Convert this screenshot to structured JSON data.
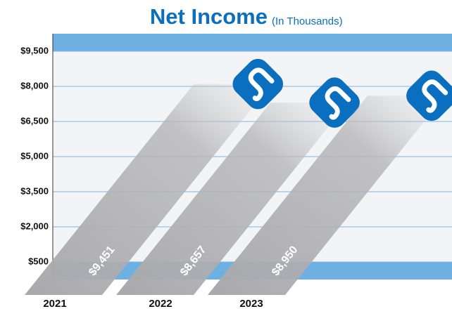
{
  "chart_data": {
    "type": "bar",
    "title": "Net Income",
    "subtitle": "(In Thousands)",
    "categories": [
      "2021",
      "2022",
      "2023"
    ],
    "values": [
      9451,
      8657,
      8950
    ],
    "value_labels": [
      "$9,451",
      "$8,657",
      "$8,950"
    ],
    "color": "#0b6fbf",
    "ylim": [
      -250,
      10250
    ],
    "yticks": [
      {
        "value": 500,
        "label": "$500"
      },
      {
        "value": 2000,
        "label": "$2,000"
      },
      {
        "value": 3500,
        "label": "$3,500"
      },
      {
        "value": 5000,
        "label": "$5,000"
      },
      {
        "value": 6500,
        "label": "$6,500"
      },
      {
        "value": 8000,
        "label": "$8,000"
      },
      {
        "value": 9500,
        "label": "$9,500"
      }
    ],
    "grid": true
  }
}
